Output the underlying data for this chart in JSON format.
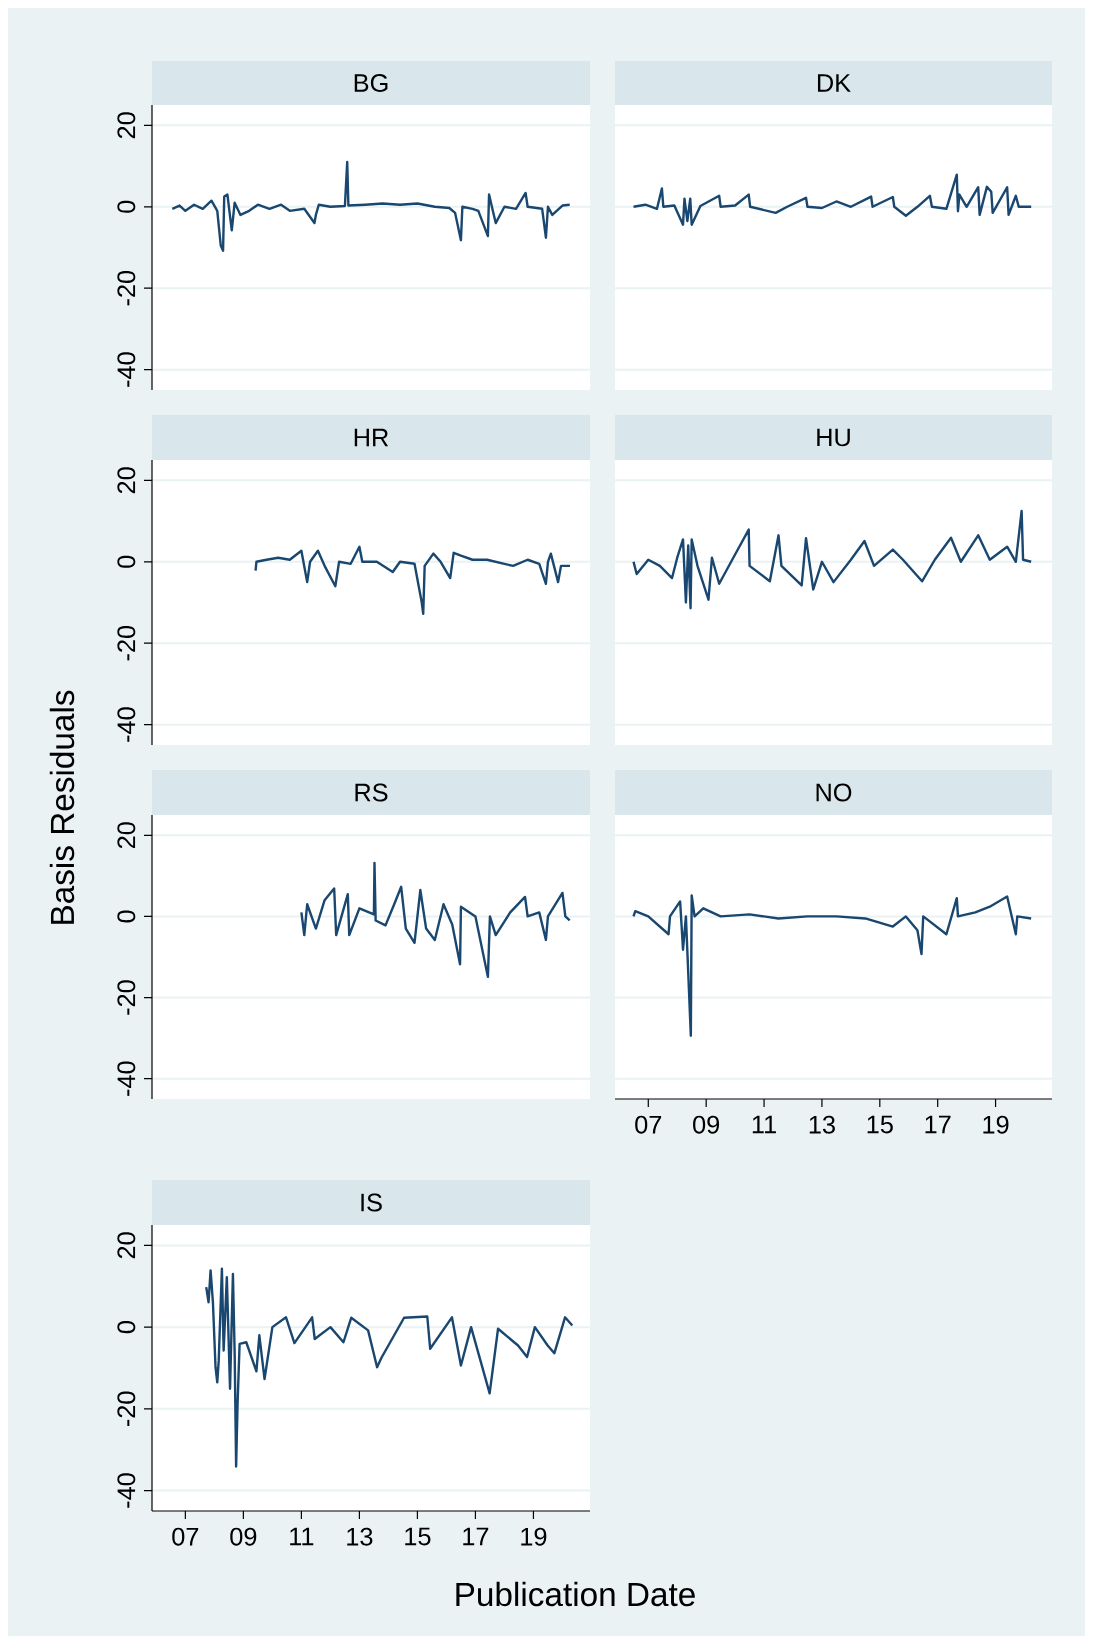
{
  "chart_data": [
    {
      "type": "line",
      "title": "BG",
      "color": "#1a476f",
      "xlim": [
        2005.85,
        2020.95
      ],
      "ylim": [
        -45,
        25
      ],
      "yticks": [
        -40,
        -20,
        0,
        20
      ],
      "grid": "y",
      "tick_labels": "y",
      "x": [
        2006.55,
        2006.8,
        2007.0,
        2007.3,
        2007.6,
        2007.9,
        2008.1,
        2008.22,
        2008.3,
        2008.34,
        2008.45,
        2008.6,
        2008.7,
        2008.9,
        2009.2,
        2009.5,
        2009.9,
        2010.3,
        2010.6,
        2011.1,
        2011.45,
        2011.5,
        2011.6,
        2012.0,
        2012.5,
        2012.58,
        2012.62,
        2013.2,
        2013.8,
        2014.4,
        2015.0,
        2015.6,
        2016.1,
        2016.3,
        2016.5,
        2016.55,
        2016.9,
        2017.1,
        2017.43,
        2017.47,
        2017.6,
        2017.7,
        2018.0,
        2018.4,
        2018.73,
        2018.8,
        2019.3,
        2019.43,
        2019.5,
        2019.65,
        2020.0,
        2020.25
      ],
      "values": [
        -0.5,
        0.3,
        -1,
        0.5,
        -0.5,
        1.5,
        -1,
        -9.5,
        -10.8,
        2.5,
        3,
        -5.8,
        1,
        -2,
        -1,
        0.5,
        -0.5,
        0.5,
        -1,
        -0.5,
        -4,
        -2,
        0.5,
        0,
        0.2,
        11,
        0.3,
        0.5,
        0.8,
        0.5,
        0.8,
        0,
        -0.3,
        -1.5,
        -8.2,
        0,
        -0.5,
        -1,
        -7.2,
        3,
        -1,
        -4,
        0,
        -0.5,
        3.4,
        0,
        -0.5,
        -7.6,
        0,
        -2,
        0.3,
        0.5
      ]
    },
    {
      "type": "line",
      "title": "DK",
      "color": "#1a476f",
      "xlim": [
        2005.85,
        2020.95
      ],
      "ylim": [
        -45,
        25
      ],
      "yticks": [
        -40,
        -20,
        0,
        20
      ],
      "grid": "y",
      "tick_labels": false,
      "x": [
        2006.49,
        2006.9,
        2007.3,
        2007.47,
        2007.52,
        2007.9,
        2008.2,
        2008.25,
        2008.35,
        2008.45,
        2008.5,
        2008.8,
        2009.45,
        2009.5,
        2010.0,
        2010.47,
        2010.52,
        2011.4,
        2011.8,
        2012.45,
        2012.5,
        2013.0,
        2013.5,
        2014.0,
        2014.7,
        2014.75,
        2015.45,
        2015.5,
        2015.9,
        2016.3,
        2016.73,
        2016.8,
        2017.3,
        2017.66,
        2017.7,
        2017.75,
        2018.0,
        2018.4,
        2018.45,
        2018.7,
        2018.85,
        2018.9,
        2019.4,
        2019.45,
        2019.7,
        2019.8,
        2020.23
      ],
      "values": [
        0,
        0.5,
        -0.5,
        4.5,
        0,
        0.3,
        -4.4,
        2,
        -3.5,
        2,
        -4.4,
        0.2,
        2.7,
        0,
        0.3,
        3,
        0,
        -1.5,
        0,
        2.2,
        0,
        -0.3,
        1.3,
        0,
        2.5,
        0,
        2.4,
        0,
        -2.2,
        0,
        2.7,
        0,
        -0.5,
        7.9,
        -1.1,
        3,
        0,
        4.8,
        -2,
        4.9,
        3.7,
        -1.5,
        4.8,
        -2,
        2.7,
        0,
        0
      ]
    },
    {
      "type": "line",
      "title": "HR",
      "color": "#1a476f",
      "xlim": [
        2005.85,
        2020.95
      ],
      "ylim": [
        -45,
        25
      ],
      "yticks": [
        -40,
        -20,
        0,
        20
      ],
      "grid": "y",
      "tick_labels": "y",
      "x": [
        2009.42,
        2009.45,
        2009.8,
        2010.2,
        2010.6,
        2011.0,
        2011.2,
        2011.3,
        2011.57,
        2011.8,
        2012.17,
        2012.3,
        2012.7,
        2013.0,
        2013.1,
        2013.6,
        2014.15,
        2014.4,
        2014.9,
        2015.15,
        2015.2,
        2015.25,
        2015.55,
        2015.8,
        2016.13,
        2016.25,
        2016.5,
        2016.9,
        2017.4,
        2018.0,
        2018.3,
        2018.8,
        2019.2,
        2019.43,
        2019.5,
        2019.6,
        2019.85,
        2019.95,
        2020.26
      ],
      "values": [
        -2.2,
        0,
        0.5,
        1,
        0.5,
        2.7,
        -5,
        0,
        2.7,
        -1,
        -6,
        0,
        -0.5,
        3.7,
        0,
        0,
        -2.5,
        0,
        -0.5,
        -10,
        -12.8,
        -1,
        2,
        0,
        -4,
        2.2,
        1.5,
        0.5,
        0.5,
        -0.5,
        -1,
        0.5,
        -0.5,
        -5.4,
        0,
        2,
        -5,
        -1,
        -1
      ]
    },
    {
      "type": "line",
      "title": "HU",
      "color": "#1a476f",
      "xlim": [
        2005.85,
        2020.95
      ],
      "ylim": [
        -45,
        25
      ],
      "yticks": [
        -40,
        -20,
        0,
        20
      ],
      "grid": "y",
      "tick_labels": false,
      "x": [
        2006.49,
        2006.6,
        2007.0,
        2007.4,
        2007.82,
        2008.0,
        2008.2,
        2008.3,
        2008.38,
        2008.46,
        2008.5,
        2008.7,
        2009.08,
        2009.2,
        2009.45,
        2009.9,
        2010.47,
        2010.5,
        2011.2,
        2011.5,
        2011.6,
        2012.3,
        2012.45,
        2012.7,
        2013.0,
        2013.4,
        2014.0,
        2014.47,
        2014.8,
        2015.45,
        2015.8,
        2016.46,
        2016.9,
        2017.46,
        2017.8,
        2018.4,
        2018.8,
        2019.4,
        2019.7,
        2019.9,
        2019.95,
        2020.23
      ],
      "values": [
        0,
        -3,
        0.5,
        -1,
        -4,
        1,
        5.5,
        -10,
        4,
        -11.4,
        5.5,
        -1,
        -9.3,
        1,
        -5.4,
        0.5,
        7.9,
        -1,
        -4.8,
        6.5,
        -1,
        -5.8,
        5.8,
        -6.8,
        0,
        -5,
        0.5,
        5.1,
        -1,
        3,
        0.5,
        -4.8,
        0.5,
        5.9,
        0,
        6.5,
        0.5,
        3.7,
        0,
        12.5,
        0.5,
        0
      ]
    },
    {
      "type": "line",
      "title": "RS",
      "ylabel": "Basis Residuals",
      "color": "#1a476f",
      "xlim": [
        2005.85,
        2020.95
      ],
      "ylim": [
        -45,
        25
      ],
      "yticks": [
        -40,
        -20,
        0,
        20
      ],
      "grid": "y",
      "tick_labels": "y",
      "x": [
        2011.0,
        2011.1,
        2011.2,
        2011.5,
        2011.8,
        2012.13,
        2012.2,
        2012.6,
        2012.65,
        2013.0,
        2013.5,
        2013.52,
        2013.56,
        2013.9,
        2014.2,
        2014.44,
        2014.6,
        2014.9,
        2015.1,
        2015.3,
        2015.6,
        2015.9,
        2016.2,
        2016.47,
        2016.5,
        2017.0,
        2017.43,
        2017.5,
        2017.7,
        2018.2,
        2018.71,
        2018.8,
        2019.2,
        2019.43,
        2019.5,
        2020.0,
        2020.1,
        2020.25
      ],
      "values": [
        1,
        -4.6,
        3,
        -3,
        4,
        6.9,
        -4.6,
        5.5,
        -4.6,
        2,
        0.5,
        13.2,
        -1,
        -2.2,
        3,
        7.3,
        -3,
        -6.5,
        6.5,
        -3,
        -5.8,
        3,
        -2,
        -11.8,
        2.4,
        0,
        -14.9,
        0,
        -4.6,
        1,
        4.8,
        0,
        1,
        -5.8,
        0,
        5.8,
        0,
        -1
      ]
    },
    {
      "type": "line",
      "title": "NO",
      "color": "#1a476f",
      "xlim": [
        2005.85,
        2020.95
      ],
      "ylim": [
        -45,
        25
      ],
      "xticks": [
        {
          "value": 2007,
          "label": "07"
        },
        {
          "value": 2009,
          "label": "09"
        },
        {
          "value": 2011,
          "label": "11"
        },
        {
          "value": 2013,
          "label": "13"
        },
        {
          "value": 2015,
          "label": "15"
        },
        {
          "value": 2017,
          "label": "17"
        },
        {
          "value": 2019,
          "label": "19"
        }
      ],
      "yticks": [
        -40,
        -20,
        0,
        20
      ],
      "grid": "y",
      "tick_labels": "x",
      "x": [
        2006.49,
        2006.55,
        2007.0,
        2007.7,
        2007.75,
        2008.1,
        2008.2,
        2008.3,
        2008.47,
        2008.5,
        2008.6,
        2008.9,
        2009.5,
        2010.5,
        2011.5,
        2012.5,
        2013.5,
        2014.5,
        2015.45,
        2015.9,
        2016.3,
        2016.44,
        2016.5,
        2017.3,
        2017.66,
        2017.7,
        2018.3,
        2018.8,
        2019.4,
        2019.7,
        2019.75,
        2020.23
      ],
      "values": [
        0,
        1.3,
        0,
        -4.4,
        0,
        3.7,
        -8.2,
        0,
        -29.4,
        5.2,
        0,
        2,
        0,
        0.5,
        -0.5,
        0,
        0,
        -0.5,
        -2.5,
        0,
        -3.4,
        -9.3,
        0,
        -4.4,
        4.5,
        0,
        1,
        2.4,
        4.9,
        -4.4,
        0,
        -0.5
      ]
    },
    {
      "type": "line",
      "title": "IS",
      "xlabel": "Publication Date",
      "color": "#1a476f",
      "xlim": [
        2005.85,
        2020.95
      ],
      "ylim": [
        -45,
        25
      ],
      "xticks": [
        {
          "value": 2007,
          "label": "07"
        },
        {
          "value": 2009,
          "label": "09"
        },
        {
          "value": 2011,
          "label": "11"
        },
        {
          "value": 2013,
          "label": "13"
        },
        {
          "value": 2015,
          "label": "15"
        },
        {
          "value": 2017,
          "label": "17"
        },
        {
          "value": 2019,
          "label": "19"
        }
      ],
      "yticks": [
        -40,
        -20,
        0,
        20
      ],
      "grid": "y",
      "x": [
        2007.72,
        2007.8,
        2007.87,
        2007.95,
        2008.04,
        2008.1,
        2008.15,
        2008.26,
        2008.32,
        2008.43,
        2008.54,
        2008.64,
        2008.7,
        2008.75,
        2008.8,
        2008.87,
        2009.1,
        2009.45,
        2009.55,
        2009.73,
        2010.0,
        2010.47,
        2010.76,
        2011.37,
        2011.46,
        2012.0,
        2012.45,
        2012.72,
        2013.3,
        2013.61,
        2013.76,
        2014.54,
        2015.34,
        2015.44,
        2016.19,
        2016.5,
        2016.85,
        2017.49,
        2017.78,
        2018.47,
        2018.78,
        2019.05,
        2019.49,
        2019.72,
        2020.09,
        2020.34
      ],
      "values": [
        9.8,
        6.1,
        13.9,
        6.1,
        -9.8,
        -13.5,
        -8.2,
        14.3,
        -5.7,
        12.2,
        -15.1,
        13,
        -6.5,
        -34.1,
        -18.8,
        -4.1,
        -3.7,
        -10.8,
        -2,
        -12.7,
        0,
        2.4,
        -3.9,
        2.4,
        -2.9,
        0,
        -3.7,
        2.3,
        -0.8,
        -9.8,
        -7.5,
        2.3,
        2.6,
        -5.3,
        2.4,
        -9.4,
        0,
        -16.2,
        -0.4,
        -4.5,
        -7.3,
        0,
        -4.5,
        -6.4,
        2.4,
        0.4
      ]
    }
  ]
}
